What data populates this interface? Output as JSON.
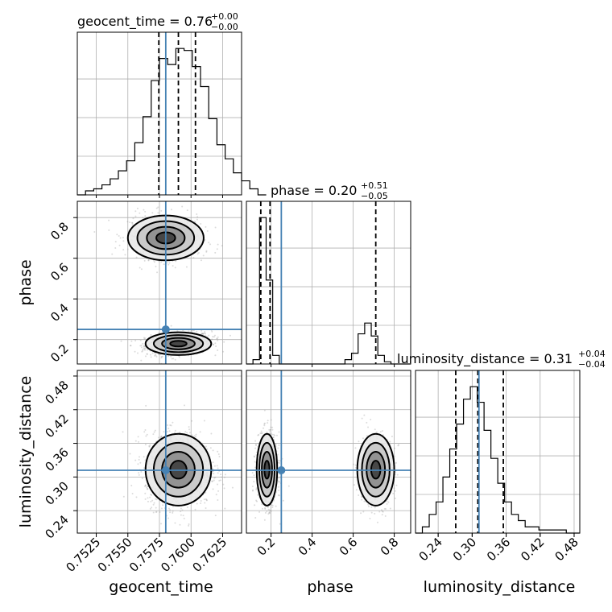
{
  "chart_data": {
    "type": "corner",
    "parameters": [
      "geocent_time",
      "phase",
      "luminosity_distance"
    ],
    "titles": [
      {
        "parameter": "geocent_time",
        "prefix": "geocent_time = 0.76",
        "upper": "+0.00",
        "lower": "−0.00"
      },
      {
        "parameter": "phase",
        "prefix": "phase = 0.20",
        "upper": "+0.51",
        "lower": "−0.05"
      },
      {
        "parameter": "luminosity_distance",
        "prefix": "luminosity_distance = 0.31",
        "upper": "+0.04",
        "lower": "−0.04"
      }
    ],
    "axes": {
      "geocent_time": {
        "range": [
          0.751,
          0.764
        ],
        "ticks": [
          0.7525,
          0.755,
          0.7575,
          0.76,
          0.7625
        ],
        "tick_labels": [
          "0.7525",
          "0.7550",
          "0.7575",
          "0.7600",
          "0.7625"
        ]
      },
      "phase": {
        "range": [
          0.08,
          0.88
        ],
        "ticks": [
          0.2,
          0.4,
          0.6,
          0.8
        ],
        "tick_labels": [
          "0.2",
          "0.4",
          "0.6",
          "0.8"
        ]
      },
      "luminosity_distance": {
        "range": [
          0.2,
          0.49
        ],
        "ticks": [
          0.24,
          0.3,
          0.36,
          0.42,
          0.48
        ],
        "tick_labels": [
          "0.24",
          "0.30",
          "0.36",
          "0.42",
          "0.48"
        ]
      }
    },
    "truth": {
      "geocent_time": 0.758,
      "phase": 0.25,
      "luminosity_distance": 0.312
    },
    "quantiles": {
      "geocent_time": [
        0.75745,
        0.759,
        0.76035
      ],
      "phase": [
        0.15,
        0.195,
        0.71
      ],
      "luminosity_distance": [
        0.271,
        0.31,
        0.355
      ]
    },
    "histograms": {
      "geocent_time": {
        "edges_from": 0.751,
        "bin_width": 0.00065,
        "counts": [
          0,
          2,
          3,
          5,
          8,
          12,
          17,
          26,
          39,
          57,
          68,
          65,
          73,
          72,
          64,
          54,
          38,
          25,
          18,
          11,
          7,
          3,
          0
        ]
      },
      "phase": {
        "edges_from": 0.08,
        "bin_width": 0.032,
        "counts": [
          0,
          2,
          68,
          39,
          4,
          0,
          0,
          0,
          0,
          0,
          0,
          0,
          0,
          0,
          0,
          2,
          5,
          14,
          19,
          13,
          4,
          1,
          0,
          0,
          0
        ]
      },
      "luminosity_distance": {
        "edges_from": 0.2,
        "bin_width": 0.0121,
        "counts": [
          0,
          2,
          6,
          10,
          18,
          27,
          35,
          43,
          47,
          42,
          33,
          24,
          16,
          10,
          6,
          4,
          2,
          2,
          1,
          1,
          1,
          1,
          0,
          0
        ]
      }
    },
    "contour_levels": [
      "0.5-sigma",
      "1-sigma",
      "1.5-sigma",
      "2-sigma"
    ],
    "grid": true
  }
}
